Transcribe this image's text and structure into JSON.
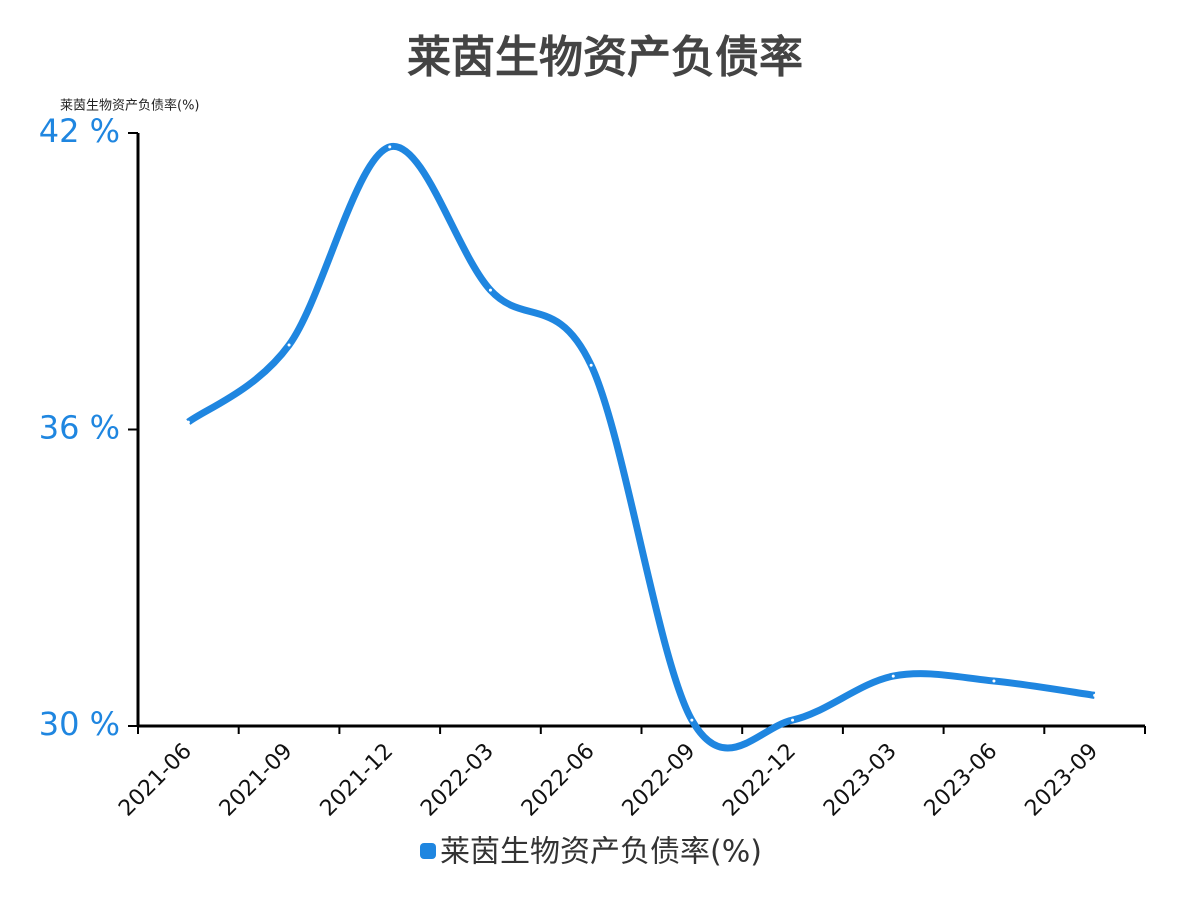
{
  "chart_data": {
    "type": "line",
    "title": "莱茵生物资产负债率",
    "y_label": "莱茵生物资产负债率(%)",
    "categories": [
      "2021-06",
      "2021-09",
      "2021-12",
      "2022-03",
      "2022-06",
      "2022-09",
      "2022-12",
      "2023-03",
      "2023-06",
      "2023-09"
    ],
    "series": [
      {
        "name": "莱茵生物资产负债率(%)",
        "color": "#1f86e0",
        "values": [
          36.15,
          37.71,
          41.72,
          38.82,
          37.3,
          30.12,
          30.12,
          31.01,
          30.91,
          30.62
        ]
      }
    ],
    "ylim": [
      30,
      42
    ],
    "yticks": [
      {
        "value": 30,
        "label": "30 %"
      },
      {
        "value": 36,
        "label": "36 %"
      },
      {
        "value": 42,
        "label": "42 %"
      }
    ],
    "smooth": true
  }
}
